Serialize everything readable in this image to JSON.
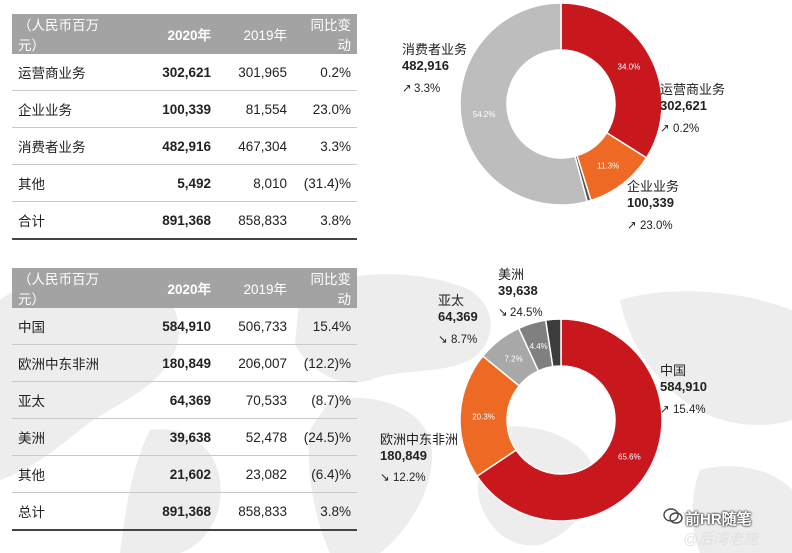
{
  "segment_table": {
    "headers": [
      "（人民币百万元）",
      "2020年",
      "2019年",
      "同比变动"
    ],
    "rows": [
      [
        "运营商业务",
        "302,621",
        "301,965",
        "0.2%"
      ],
      [
        "企业业务",
        "100,339",
        "81,554",
        "23.0%"
      ],
      [
        "消费者业务",
        "482,916",
        "467,304",
        "3.3%"
      ],
      [
        "其他",
        "5,492",
        "8,010",
        "(31.4)%"
      ],
      [
        "合计",
        "891,368",
        "858,833",
        "3.8%"
      ]
    ]
  },
  "region_table": {
    "headers": [
      "（人民币百万元）",
      "2020年",
      "2019年",
      "同比变动"
    ],
    "rows": [
      [
        "中国",
        "584,910",
        "506,733",
        "15.4%"
      ],
      [
        "欧洲中东非洲",
        "180,849",
        "206,007",
        "(12.2)%"
      ],
      [
        "亚太",
        "64,369",
        "70,533",
        "(8.7)%"
      ],
      [
        "美洲",
        "39,638",
        "52,478",
        "(24.5)%"
      ],
      [
        "其他",
        "21,602",
        "23,082",
        "(6.4)%"
      ],
      [
        "总计",
        "891,368",
        "858,833",
        "3.8%"
      ]
    ]
  },
  "chart_data": [
    {
      "type": "pie",
      "title": "",
      "categories": [
        "运营商业务",
        "企业业务",
        "其他",
        "消费者业务"
      ],
      "values": [
        302621,
        100339,
        5492,
        482916
      ],
      "percent_labels": [
        "34.0%",
        "11.3%",
        "",
        "54.2%"
      ],
      "callouts": [
        {
          "name": "运营商业务",
          "value": "302,621",
          "change": "0.2%",
          "direction": "up"
        },
        {
          "name": "企业业务",
          "value": "100,339",
          "change": "23.0%",
          "direction": "up"
        },
        {
          "name": "消费者业务",
          "value": "482,916",
          "change": "3.3%",
          "direction": "up"
        }
      ],
      "colors": [
        "#c8181e",
        "#ee6a24",
        "#555555",
        "#bdbdbd"
      ]
    },
    {
      "type": "pie",
      "title": "",
      "categories": [
        "中国",
        "欧洲中东非洲",
        "亚太",
        "美洲",
        "其他"
      ],
      "values": [
        584910,
        180849,
        64369,
        39638,
        21602
      ],
      "percent_labels": [
        "65.6%",
        "20.3%",
        "7.2%",
        "4.4%",
        ""
      ],
      "callouts": [
        {
          "name": "中国",
          "value": "584,910",
          "change": "15.4%",
          "direction": "up"
        },
        {
          "name": "欧洲中东非洲",
          "value": "180,849",
          "change": "12.2%",
          "direction": "down"
        },
        {
          "name": "亚太",
          "value": "64,369",
          "change": "8.7%",
          "direction": "down"
        },
        {
          "name": "美洲",
          "value": "39,638",
          "change": "24.5%",
          "direction": "down"
        }
      ],
      "colors": [
        "#c8181e",
        "#ee6a24",
        "#a8a8a8",
        "#808080",
        "#3c3c3c"
      ]
    }
  ],
  "watermark": {
    "line1": "前HR随笔",
    "line2": "@后湾老施"
  }
}
